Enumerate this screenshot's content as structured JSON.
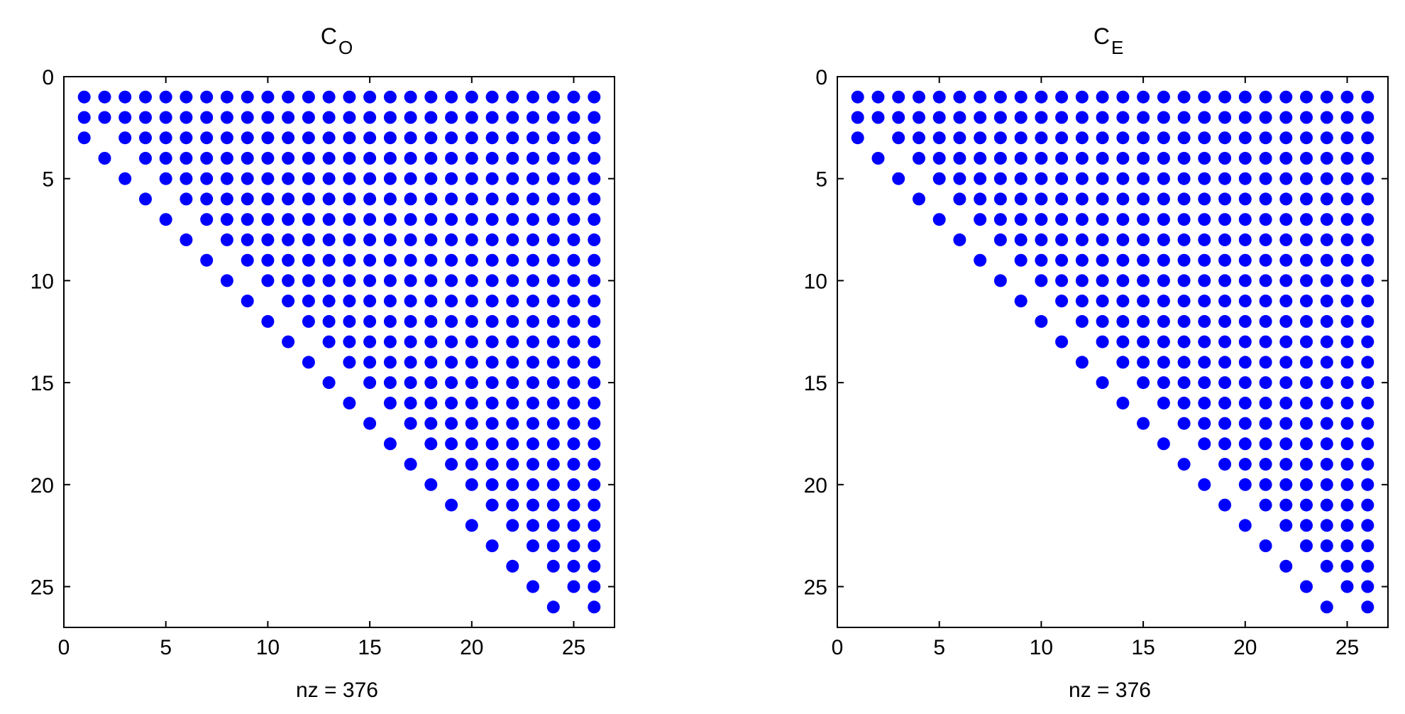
{
  "chart_data": [
    {
      "type": "scatter",
      "title_main": "C",
      "title_sub": "O",
      "xlabel": "nz = 376",
      "xlim": [
        0,
        27
      ],
      "ylim": [
        0,
        27
      ],
      "y_reversed": true,
      "xticks": [
        0,
        5,
        10,
        15,
        20,
        25
      ],
      "yticks": [
        0,
        5,
        10,
        15,
        20,
        25
      ],
      "marker_color": "#0000FF",
      "rows": [
        {
          "y": 1,
          "x": [
            1,
            2,
            3,
            4,
            5,
            6,
            7,
            8,
            9,
            10,
            11,
            12,
            13,
            14,
            15,
            16,
            17,
            18,
            19,
            20,
            21,
            22,
            23,
            24,
            25,
            26
          ]
        },
        {
          "y": 2,
          "x": [
            1,
            2,
            3,
            4,
            5,
            6,
            7,
            8,
            9,
            10,
            11,
            12,
            13,
            14,
            15,
            16,
            17,
            18,
            19,
            20,
            21,
            22,
            23,
            24,
            25,
            26
          ]
        },
        {
          "y": 3,
          "x": [
            1,
            3,
            4,
            5,
            6,
            7,
            8,
            9,
            10,
            11,
            12,
            13,
            14,
            15,
            16,
            17,
            18,
            19,
            20,
            21,
            22,
            23,
            24,
            25,
            26
          ]
        },
        {
          "y": 4,
          "x": [
            2,
            4,
            5,
            6,
            7,
            8,
            9,
            10,
            11,
            12,
            13,
            14,
            15,
            16,
            17,
            18,
            19,
            20,
            21,
            22,
            23,
            24,
            25,
            26
          ]
        },
        {
          "y": 5,
          "x": [
            3,
            5,
            6,
            7,
            8,
            9,
            10,
            11,
            12,
            13,
            14,
            15,
            16,
            17,
            18,
            19,
            20,
            21,
            22,
            23,
            24,
            25,
            26
          ]
        },
        {
          "y": 6,
          "x": [
            4,
            6,
            7,
            8,
            9,
            10,
            11,
            12,
            13,
            14,
            15,
            16,
            17,
            18,
            19,
            20,
            21,
            22,
            23,
            24,
            25,
            26
          ]
        },
        {
          "y": 7,
          "x": [
            5,
            7,
            8,
            9,
            10,
            11,
            12,
            13,
            14,
            15,
            16,
            17,
            18,
            19,
            20,
            21,
            22,
            23,
            24,
            25,
            26
          ]
        },
        {
          "y": 8,
          "x": [
            6,
            8,
            9,
            10,
            11,
            12,
            13,
            14,
            15,
            16,
            17,
            18,
            19,
            20,
            21,
            22,
            23,
            24,
            25,
            26
          ]
        },
        {
          "y": 9,
          "x": [
            7,
            9,
            10,
            11,
            12,
            13,
            14,
            15,
            16,
            17,
            18,
            19,
            20,
            21,
            22,
            23,
            24,
            25,
            26
          ]
        },
        {
          "y": 10,
          "x": [
            8,
            10,
            11,
            12,
            13,
            14,
            15,
            16,
            17,
            18,
            19,
            20,
            21,
            22,
            23,
            24,
            25,
            26
          ]
        },
        {
          "y": 11,
          "x": [
            9,
            11,
            12,
            13,
            14,
            15,
            16,
            17,
            18,
            19,
            20,
            21,
            22,
            23,
            24,
            25,
            26
          ]
        },
        {
          "y": 12,
          "x": [
            10,
            12,
            13,
            14,
            15,
            16,
            17,
            18,
            19,
            20,
            21,
            22,
            23,
            24,
            25,
            26
          ]
        },
        {
          "y": 13,
          "x": [
            11,
            13,
            14,
            15,
            16,
            17,
            18,
            19,
            20,
            21,
            22,
            23,
            24,
            25,
            26
          ]
        },
        {
          "y": 14,
          "x": [
            12,
            14,
            15,
            16,
            17,
            18,
            19,
            20,
            21,
            22,
            23,
            24,
            25,
            26
          ]
        },
        {
          "y": 15,
          "x": [
            13,
            15,
            16,
            17,
            18,
            19,
            20,
            21,
            22,
            23,
            24,
            25,
            26
          ]
        },
        {
          "y": 16,
          "x": [
            14,
            16,
            17,
            18,
            19,
            20,
            21,
            22,
            23,
            24,
            25,
            26
          ]
        },
        {
          "y": 17,
          "x": [
            15,
            17,
            18,
            19,
            20,
            21,
            22,
            23,
            24,
            25,
            26
          ]
        },
        {
          "y": 18,
          "x": [
            16,
            18,
            19,
            20,
            21,
            22,
            23,
            24,
            25,
            26
          ]
        },
        {
          "y": 19,
          "x": [
            17,
            19,
            20,
            21,
            22,
            23,
            24,
            25,
            26
          ]
        },
        {
          "y": 20,
          "x": [
            18,
            20,
            21,
            22,
            23,
            24,
            25,
            26
          ]
        },
        {
          "y": 21,
          "x": [
            19,
            21,
            22,
            23,
            24,
            25,
            26
          ]
        },
        {
          "y": 22,
          "x": [
            20,
            22,
            23,
            24,
            25,
            26
          ]
        },
        {
          "y": 23,
          "x": [
            21,
            23,
            24,
            25,
            26
          ]
        },
        {
          "y": 24,
          "x": [
            22,
            24,
            25,
            26
          ]
        },
        {
          "y": 25,
          "x": [
            23,
            25,
            26
          ]
        },
        {
          "y": 26,
          "x": [
            24,
            26
          ]
        }
      ]
    },
    {
      "type": "scatter",
      "title_main": "C",
      "title_sub": "E",
      "xlabel": "nz = 376",
      "xlim": [
        0,
        27
      ],
      "ylim": [
        0,
        27
      ],
      "y_reversed": true,
      "xticks": [
        0,
        5,
        10,
        15,
        20,
        25
      ],
      "yticks": [
        0,
        5,
        10,
        15,
        20,
        25
      ],
      "marker_color": "#0000FF",
      "rows": [
        {
          "y": 1,
          "x": [
            1,
            2,
            3,
            4,
            5,
            6,
            7,
            8,
            9,
            10,
            11,
            12,
            13,
            14,
            15,
            16,
            17,
            18,
            19,
            20,
            21,
            22,
            23,
            24,
            25,
            26
          ]
        },
        {
          "y": 2,
          "x": [
            1,
            2,
            3,
            4,
            5,
            6,
            7,
            8,
            9,
            10,
            11,
            12,
            13,
            14,
            15,
            16,
            17,
            18,
            19,
            20,
            21,
            22,
            23,
            24,
            25,
            26
          ]
        },
        {
          "y": 3,
          "x": [
            1,
            3,
            4,
            5,
            6,
            7,
            8,
            9,
            10,
            11,
            12,
            13,
            14,
            15,
            16,
            17,
            18,
            19,
            20,
            21,
            22,
            23,
            24,
            25,
            26
          ]
        },
        {
          "y": 4,
          "x": [
            2,
            4,
            5,
            6,
            7,
            8,
            9,
            10,
            11,
            12,
            13,
            14,
            15,
            16,
            17,
            18,
            19,
            20,
            21,
            22,
            23,
            24,
            25,
            26
          ]
        },
        {
          "y": 5,
          "x": [
            3,
            5,
            6,
            7,
            8,
            9,
            10,
            11,
            12,
            13,
            14,
            15,
            16,
            17,
            18,
            19,
            20,
            21,
            22,
            23,
            24,
            25,
            26
          ]
        },
        {
          "y": 6,
          "x": [
            4,
            6,
            7,
            8,
            9,
            10,
            11,
            12,
            13,
            14,
            15,
            16,
            17,
            18,
            19,
            20,
            21,
            22,
            23,
            24,
            25,
            26
          ]
        },
        {
          "y": 7,
          "x": [
            5,
            7,
            8,
            9,
            10,
            11,
            12,
            13,
            14,
            15,
            16,
            17,
            18,
            19,
            20,
            21,
            22,
            23,
            24,
            25,
            26
          ]
        },
        {
          "y": 8,
          "x": [
            6,
            8,
            9,
            10,
            11,
            12,
            13,
            14,
            15,
            16,
            17,
            18,
            19,
            20,
            21,
            22,
            23,
            24,
            25,
            26
          ]
        },
        {
          "y": 9,
          "x": [
            7,
            9,
            10,
            11,
            12,
            13,
            14,
            15,
            16,
            17,
            18,
            19,
            20,
            21,
            22,
            23,
            24,
            25,
            26
          ]
        },
        {
          "y": 10,
          "x": [
            8,
            10,
            11,
            12,
            13,
            14,
            15,
            16,
            17,
            18,
            19,
            20,
            21,
            22,
            23,
            24,
            25,
            26
          ]
        },
        {
          "y": 11,
          "x": [
            9,
            11,
            12,
            13,
            14,
            15,
            16,
            17,
            18,
            19,
            20,
            21,
            22,
            23,
            24,
            25,
            26
          ]
        },
        {
          "y": 12,
          "x": [
            10,
            12,
            13,
            14,
            15,
            16,
            17,
            18,
            19,
            20,
            21,
            22,
            23,
            24,
            25,
            26
          ]
        },
        {
          "y": 13,
          "x": [
            11,
            13,
            14,
            15,
            16,
            17,
            18,
            19,
            20,
            21,
            22,
            23,
            24,
            25,
            26
          ]
        },
        {
          "y": 14,
          "x": [
            12,
            14,
            15,
            16,
            17,
            18,
            19,
            20,
            21,
            22,
            23,
            24,
            25,
            26
          ]
        },
        {
          "y": 15,
          "x": [
            13,
            15,
            16,
            17,
            18,
            19,
            20,
            21,
            22,
            23,
            24,
            25,
            26
          ]
        },
        {
          "y": 16,
          "x": [
            14,
            16,
            17,
            18,
            19,
            20,
            21,
            22,
            23,
            24,
            25,
            26
          ]
        },
        {
          "y": 17,
          "x": [
            15,
            17,
            18,
            19,
            20,
            21,
            22,
            23,
            24,
            25,
            26
          ]
        },
        {
          "y": 18,
          "x": [
            16,
            18,
            19,
            20,
            21,
            22,
            23,
            24,
            25,
            26
          ]
        },
        {
          "y": 19,
          "x": [
            17,
            19,
            20,
            21,
            22,
            23,
            24,
            25,
            26
          ]
        },
        {
          "y": 20,
          "x": [
            18,
            20,
            21,
            22,
            23,
            24,
            25,
            26
          ]
        },
        {
          "y": 21,
          "x": [
            19,
            21,
            22,
            23,
            24,
            25,
            26
          ]
        },
        {
          "y": 22,
          "x": [
            20,
            22,
            23,
            24,
            25,
            26
          ]
        },
        {
          "y": 23,
          "x": [
            21,
            23,
            24,
            25,
            26
          ]
        },
        {
          "y": 24,
          "x": [
            22,
            24,
            25,
            26
          ]
        },
        {
          "y": 25,
          "x": [
            23,
            25,
            26
          ]
        },
        {
          "y": 26,
          "x": [
            24,
            26
          ]
        }
      ]
    }
  ]
}
